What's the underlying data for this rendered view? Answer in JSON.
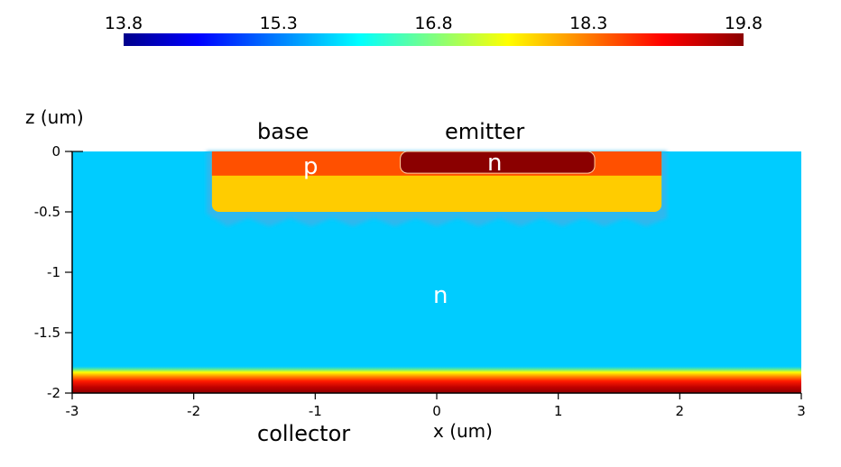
{
  "chart_data": {
    "type": "heatmap",
    "title": "",
    "xlabel": "x (um)",
    "ylabel": "z (um)",
    "xlim": [
      -3,
      3
    ],
    "ylim": [
      -2,
      0
    ],
    "x_ticks": [
      "-3",
      "-2",
      "-1",
      "0",
      "1",
      "2",
      "3"
    ],
    "y_ticks": [
      "0",
      "-0.5",
      "-1",
      "-1.5",
      "-2"
    ],
    "colorbar": {
      "min": 13.8,
      "max": 19.8,
      "tick_labels": [
        "13.8",
        "15.3",
        "16.8",
        "18.3",
        "19.8"
      ],
      "colormap": [
        "#00008b",
        "#0000ff",
        "#00ffff",
        "#ffff00",
        "#ff0000",
        "#8b0000"
      ]
    },
    "regions": [
      {
        "label": "n",
        "x": [
          -3,
          3
        ],
        "z": [
          -1.78,
          0
        ],
        "value": 16.1
      },
      {
        "label": "p",
        "x": [
          -1.85,
          1.85
        ],
        "z": [
          -0.5,
          0
        ],
        "value": 18.0
      },
      {
        "label": "",
        "x": [
          -1.85,
          1.85
        ],
        "z": [
          -0.2,
          0
        ],
        "value": 18.6
      },
      {
        "label": "n",
        "x": [
          -0.3,
          1.3
        ],
        "z": [
          -0.18,
          0
        ],
        "value": 19.8
      },
      {
        "label": "",
        "x": [
          -3,
          3
        ],
        "z": [
          -2,
          -1.78
        ],
        "value": 19.8
      }
    ]
  },
  "annotations": {
    "base": "base",
    "emitter": "emitter",
    "collector": "collector",
    "p_region": "p",
    "n_emitter": "n",
    "n_bulk": "n"
  }
}
